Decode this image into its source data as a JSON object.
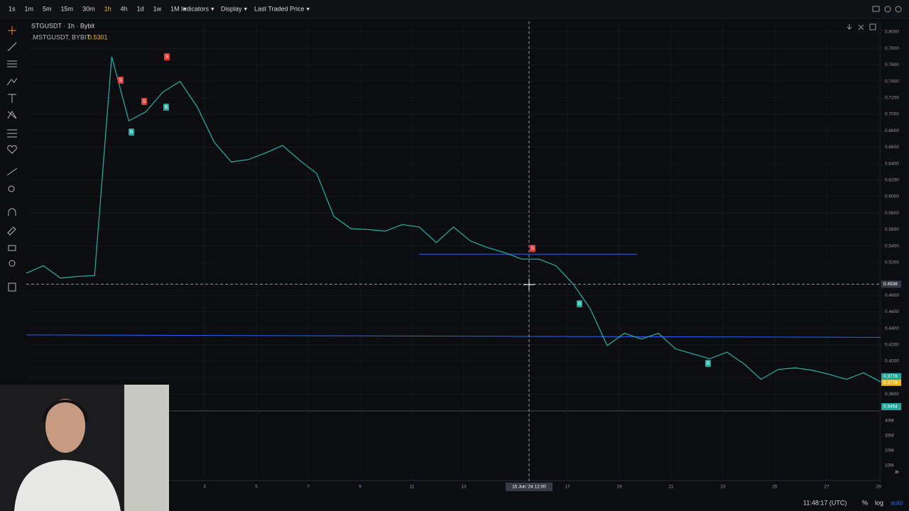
{
  "toolbar": {
    "intervals": [
      "1s",
      "1m",
      "5m",
      "15m",
      "30m",
      "1h",
      "4h",
      "1d",
      "1w",
      "1M"
    ],
    "menus": [
      "Indicators",
      "Display",
      "Last Traded Price"
    ]
  },
  "legend": {
    "symbol": "STGUSDT · 1h · Bybit",
    "compare": ".MSTGUSDT, BYBIT",
    "compare_value": "0.5301"
  },
  "chart_data": {
    "type": "line",
    "values": [
      0.507,
      0.516,
      0.501,
      0.503,
      0.504,
      0.77,
      0.692,
      0.703,
      0.727,
      0.74,
      0.709,
      0.666,
      0.642,
      0.645,
      0.653,
      0.662,
      0.644,
      0.628,
      0.576,
      0.561,
      0.56,
      0.558,
      0.566,
      0.563,
      0.544,
      0.563,
      0.546,
      0.538,
      0.532,
      0.524,
      0.524,
      0.516,
      0.494,
      0.464,
      0.419,
      0.434,
      0.427,
      0.434,
      0.415,
      0.409,
      0.403,
      0.411,
      0.397,
      0.378,
      0.39,
      0.392,
      0.389,
      0.384,
      0.378,
      0.386,
      0.375
    ],
    "color": "#26a69a",
    "ylim": [
      0.3405,
      0.8129
    ],
    "yticks": [
      {
        "value": 0.8,
        "label": "0.8000"
      },
      {
        "value": 0.78,
        "label": "0.7800"
      },
      {
        "value": 0.76,
        "label": "0.7600"
      },
      {
        "value": 0.74,
        "label": "0.7400"
      },
      {
        "value": 0.72,
        "label": "0.7200"
      },
      {
        "value": 0.7,
        "label": "0.7000"
      },
      {
        "value": 0.68,
        "label": "0.6800"
      },
      {
        "value": 0.66,
        "label": "0.6600"
      },
      {
        "value": 0.64,
        "label": "0.6400"
      },
      {
        "value": 0.62,
        "label": "0.6200"
      },
      {
        "value": 0.6,
        "label": "0.6000"
      },
      {
        "value": 0.58,
        "label": "0.5800"
      },
      {
        "value": 0.56,
        "label": "0.5600"
      },
      {
        "value": 0.54,
        "label": "0.5400"
      },
      {
        "value": 0.52,
        "label": "0.5200"
      },
      {
        "value": 0.48,
        "label": "0.4800"
      },
      {
        "value": 0.46,
        "label": "0.4600"
      },
      {
        "value": 0.44,
        "label": "0.4400"
      },
      {
        "value": 0.42,
        "label": "0.4200"
      },
      {
        "value": 0.4,
        "label": "0.4000"
      },
      {
        "value": 0.38,
        "label": "0.3800"
      },
      {
        "value": 0.36,
        "label": "0.3600"
      }
    ],
    "grid": true,
    "crosshair": {
      "value": 0.4936,
      "label": "0.4936",
      "time_label": "15 Jun '24  12:00"
    },
    "price_labels": [
      {
        "value": 0.3778,
        "label": "0.3778"
      },
      {
        "value": 0.3778,
        "label": "0.3778"
      }
    ],
    "volume_label": "0.3454",
    "lines": [
      {
        "color": "#2962ff",
        "values": [
          0.53,
          0.53
        ]
      },
      {
        "color": "#2962ff",
        "values": [
          0.432,
          0.429
        ]
      }
    ],
    "volume_ticks": [
      {
        "value": 40000000,
        "label": "40M"
      },
      {
        "value": 30000000,
        "label": "30M"
      },
      {
        "value": 20000000,
        "label": "20M"
      },
      {
        "value": 10000000,
        "label": "10M"
      }
    ],
    "volume_lim": [
      0,
      45000000
    ],
    "time_labels": [
      "3",
      "5",
      "7",
      "9",
      "11",
      "13",
      "17",
      "19",
      "21",
      "23",
      "25",
      "27",
      "29"
    ],
    "signals": [
      "S",
      "S",
      "S",
      "S",
      "B",
      "B",
      "B",
      "B"
    ]
  },
  "footer": {
    "clock": "11:48:17 (UTC)",
    "percent": "%",
    "log": "log",
    "auto": "auto"
  }
}
